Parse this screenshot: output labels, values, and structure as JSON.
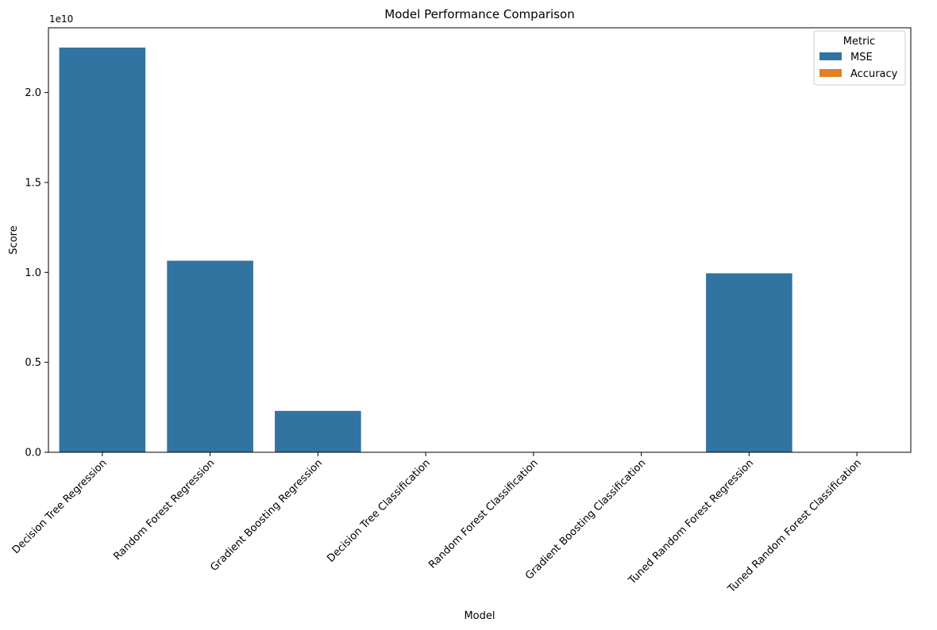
{
  "chart_data": {
    "type": "bar",
    "title": "Model Performance Comparison",
    "xlabel": "Model",
    "ylabel": "Score",
    "offset_text": "1e10",
    "categories": [
      "Decision Tree Regression",
      "Random Forest Regression",
      "Gradient Boosting Regression",
      "Decision Tree Classification",
      "Random Forest Classification",
      "Gradient Boosting Classification",
      "Tuned Random Forest Regression",
      "Tuned Random Forest Classification"
    ],
    "series": [
      {
        "name": "MSE",
        "color": "#3274a1",
        "values": [
          22500000000,
          10650000000,
          2300000000,
          null,
          null,
          null,
          9950000000,
          null
        ]
      },
      {
        "name": "Accuracy",
        "color": "#e1812c",
        "values": [
          null,
          null,
          null,
          0.9,
          0.92,
          0.91,
          null,
          0.93
        ]
      }
    ],
    "ylim": [
      0,
      23600000000
    ],
    "yticks": [
      0,
      5000000000,
      10000000000,
      15000000000,
      20000000000
    ],
    "ytick_labels": [
      "0.0",
      "0.5",
      "1.0",
      "1.5",
      "2.0"
    ],
    "grid": false,
    "legend": {
      "title": "Metric",
      "position": "top-right"
    }
  }
}
